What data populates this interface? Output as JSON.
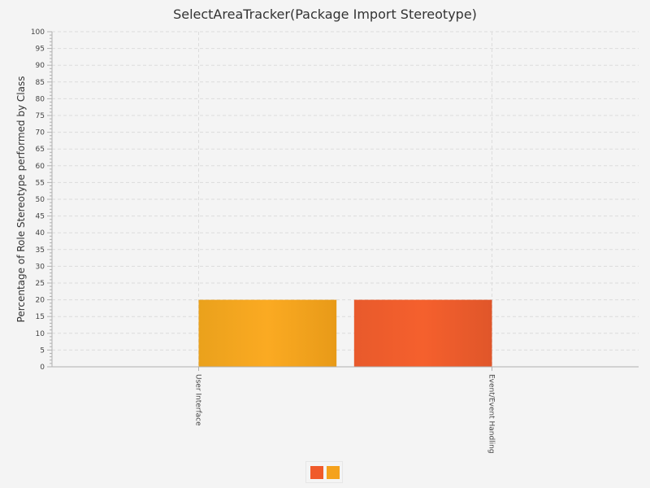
{
  "chart_data": {
    "type": "bar",
    "title": "SelectAreaTracker(Package Import Stereotype)",
    "xlabel": "",
    "ylabel": "Percentage of Role Stereotype performed by Class",
    "categories": [
      "User Interface",
      "Event/Event Handling"
    ],
    "series": [
      {
        "values": [
          0,
          20
        ],
        "color": "#f05a2a"
      },
      {
        "values": [
          20,
          0
        ],
        "color": "#f5a21c"
      }
    ],
    "ylim": [
      0,
      100
    ],
    "yticks": [
      0,
      5,
      10,
      15,
      20,
      25,
      30,
      35,
      40,
      45,
      50,
      55,
      60,
      65,
      70,
      75,
      80,
      85,
      90,
      95,
      100
    ],
    "grid": true,
    "legend": "bottom-center"
  }
}
